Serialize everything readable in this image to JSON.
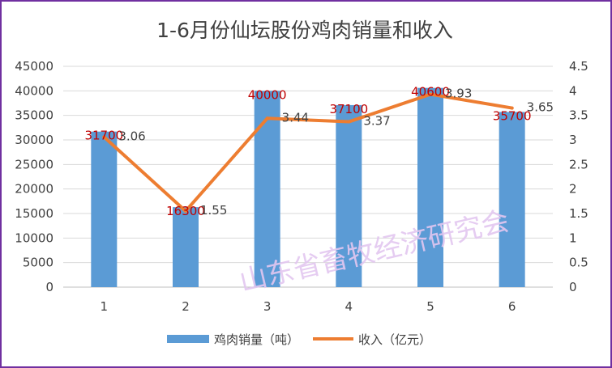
{
  "chart_data": {
    "type": "bar",
    "title": "1-6月份仙坛股份鸡肉销量和收入",
    "categories": [
      "1",
      "2",
      "3",
      "4",
      "5",
      "6"
    ],
    "series": [
      {
        "name": "鸡肉销量（吨）",
        "type": "bar",
        "axis": "left",
        "color": "#5b9bd5",
        "values": [
          31700,
          16300,
          40000,
          37100,
          40600,
          35700
        ]
      },
      {
        "name": "收入（亿元）",
        "type": "line",
        "axis": "right",
        "color": "#ed7d31",
        "values": [
          3.06,
          1.55,
          3.44,
          3.37,
          3.93,
          3.65
        ]
      }
    ],
    "y_left": {
      "min": 0,
      "max": 45000,
      "step": 5000,
      "tick_labels": [
        "0",
        "5000",
        "10000",
        "15000",
        "20000",
        "25000",
        "30000",
        "35000",
        "40000",
        "45000"
      ]
    },
    "y_right": {
      "min": 0,
      "max": 4.5,
      "step": 0.5,
      "tick_labels": [
        "0",
        "0.5",
        "1",
        "1.5",
        "2",
        "2.5",
        "3",
        "3.5",
        "4",
        "4.5"
      ]
    },
    "bar_label_color": "#c00000",
    "grid": true,
    "legend_position": "bottom"
  },
  "watermark": "山东省畜牧经济研究会",
  "frame_color": "#7030a0"
}
